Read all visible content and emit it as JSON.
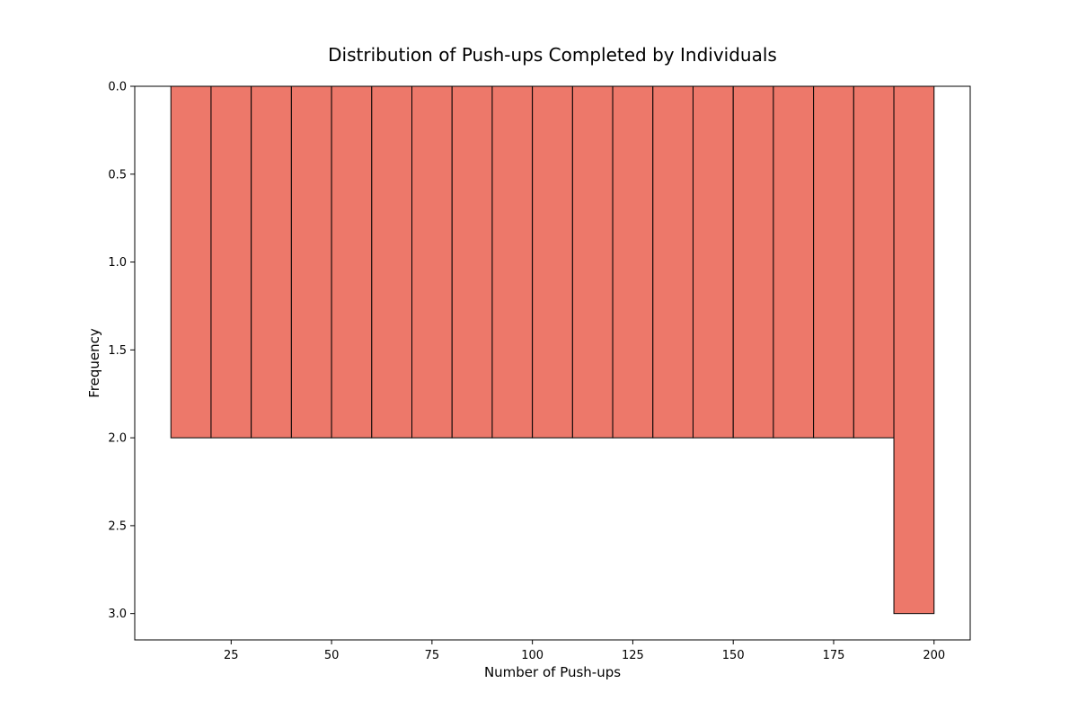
{
  "chart_data": {
    "type": "bar",
    "title": "Distribution of Push-ups Completed by Individuals",
    "xlabel": "Number of Push-ups",
    "ylabel": "Frequency",
    "bins": [
      {
        "start": 10,
        "end": 20,
        "count": 2
      },
      {
        "start": 20,
        "end": 30,
        "count": 2
      },
      {
        "start": 30,
        "end": 40,
        "count": 2
      },
      {
        "start": 40,
        "end": 50,
        "count": 2
      },
      {
        "start": 50,
        "end": 60,
        "count": 2
      },
      {
        "start": 60,
        "end": 70,
        "count": 2
      },
      {
        "start": 70,
        "end": 80,
        "count": 2
      },
      {
        "start": 80,
        "end": 90,
        "count": 2
      },
      {
        "start": 90,
        "end": 100,
        "count": 2
      },
      {
        "start": 100,
        "end": 110,
        "count": 2
      },
      {
        "start": 110,
        "end": 120,
        "count": 2
      },
      {
        "start": 120,
        "end": 130,
        "count": 2
      },
      {
        "start": 130,
        "end": 140,
        "count": 2
      },
      {
        "start": 140,
        "end": 150,
        "count": 2
      },
      {
        "start": 150,
        "end": 160,
        "count": 2
      },
      {
        "start": 160,
        "end": 170,
        "count": 2
      },
      {
        "start": 170,
        "end": 180,
        "count": 2
      },
      {
        "start": 180,
        "end": 190,
        "count": 2
      },
      {
        "start": 190,
        "end": 200,
        "count": 3
      }
    ],
    "xlim": [
      1,
      209
    ],
    "ylim": [
      0,
      3.15
    ],
    "y_inverted": true,
    "x_ticks": [
      25,
      50,
      75,
      100,
      125,
      150,
      175,
      200
    ],
    "x_tick_labels": [
      "25",
      "50",
      "75",
      "100",
      "125",
      "150",
      "175",
      "200"
    ],
    "y_ticks": [
      0,
      0.5,
      1,
      1.5,
      2,
      2.5,
      3
    ],
    "y_tick_labels": [
      "0.0",
      "0.5",
      "1.0",
      "1.5",
      "2.0",
      "2.5",
      "3.0"
    ],
    "bar_color": "#ed786a",
    "edge_color": "#000000",
    "grid": false,
    "legend": "none"
  }
}
